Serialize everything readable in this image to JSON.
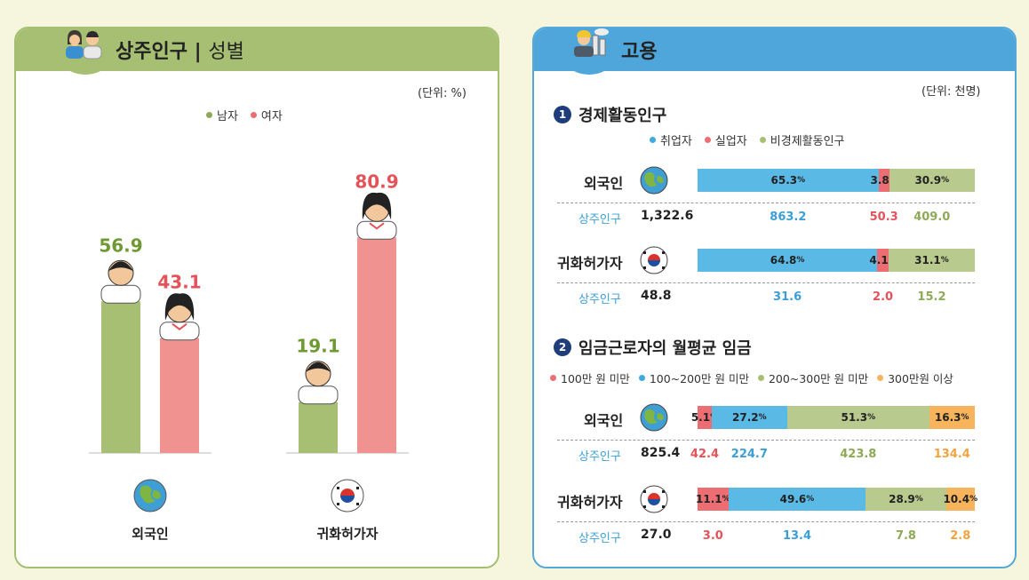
{
  "colors": {
    "male": "#a6bf73",
    "female": "#f0928f",
    "male_text": "#6f9a33",
    "female_text": "#e5535a",
    "employed": "#5ab9e5",
    "unemployed": "#ec6e72",
    "inactive": "#b9ca8e",
    "w1": "#ec6e72",
    "w2": "#5ab9e5",
    "w3": "#b9ca8e",
    "w4": "#f7b45c"
  },
  "left": {
    "title_main": "상주인구",
    "title_sep": "|",
    "title_sub": "성별",
    "unit": "(단위: %)",
    "icon": "couple-icon"
  },
  "right": {
    "title": "고용",
    "unit": "(단위: 천명)",
    "icon": "worker-factory-icon",
    "section1": {
      "num": "1",
      "title": "경제활동인구"
    },
    "section2": {
      "num": "2",
      "title": "임금근로자의 월평균 임금"
    },
    "pop_label": "상주인구"
  },
  "chart_data": [
    {
      "type": "bar",
      "title": "상주인구 | 성별",
      "categories": [
        "외국인",
        "귀화허가자"
      ],
      "series": [
        {
          "name": "남자",
          "values": [
            56.9,
            19.1
          ]
        },
        {
          "name": "여자",
          "values": [
            43.1,
            80.9
          ]
        }
      ],
      "ylim": [
        0,
        100
      ],
      "unit": "(단위: %)"
    },
    {
      "type": "bar",
      "stacked": true,
      "orientation": "horizontal",
      "title": "경제활동인구",
      "unit": "(단위: 천명)",
      "series_names": [
        "취업자",
        "실업자",
        "비경제활동인구"
      ],
      "rows": [
        {
          "label": "외국인",
          "icon": "globe-icon",
          "total": "1,322.6",
          "percents": [
            "65.3",
            "3.8",
            "30.9"
          ],
          "values": [
            "863.2",
            "50.3",
            "409.0"
          ]
        },
        {
          "label": "귀화허가자",
          "icon": "korea-flag-icon",
          "total": "48.8",
          "percents": [
            "64.8",
            "4.1",
            "31.1"
          ],
          "values": [
            "31.6",
            "2.0",
            "15.2"
          ]
        }
      ]
    },
    {
      "type": "bar",
      "stacked": true,
      "orientation": "horizontal",
      "title": "임금근로자의 월평균 임금",
      "unit": "(단위: 천명)",
      "series_names": [
        "100만 원 미만",
        "100~200만 원 미만",
        "200~300만 원 미만",
        "300만원 이상"
      ],
      "rows": [
        {
          "label": "외국인",
          "icon": "globe-icon",
          "total": "825.4",
          "percents": [
            "5.1",
            "27.2",
            "51.3",
            "16.3"
          ],
          "values": [
            "42.4",
            "224.7",
            "423.8",
            "134.4"
          ]
        },
        {
          "label": "귀화허가자",
          "icon": "korea-flag-icon",
          "total": "27.0",
          "percents": [
            "11.1",
            "49.6",
            "28.9",
            "10.4"
          ],
          "values": [
            "3.0",
            "13.4",
            "7.8",
            "2.8"
          ]
        }
      ]
    }
  ]
}
